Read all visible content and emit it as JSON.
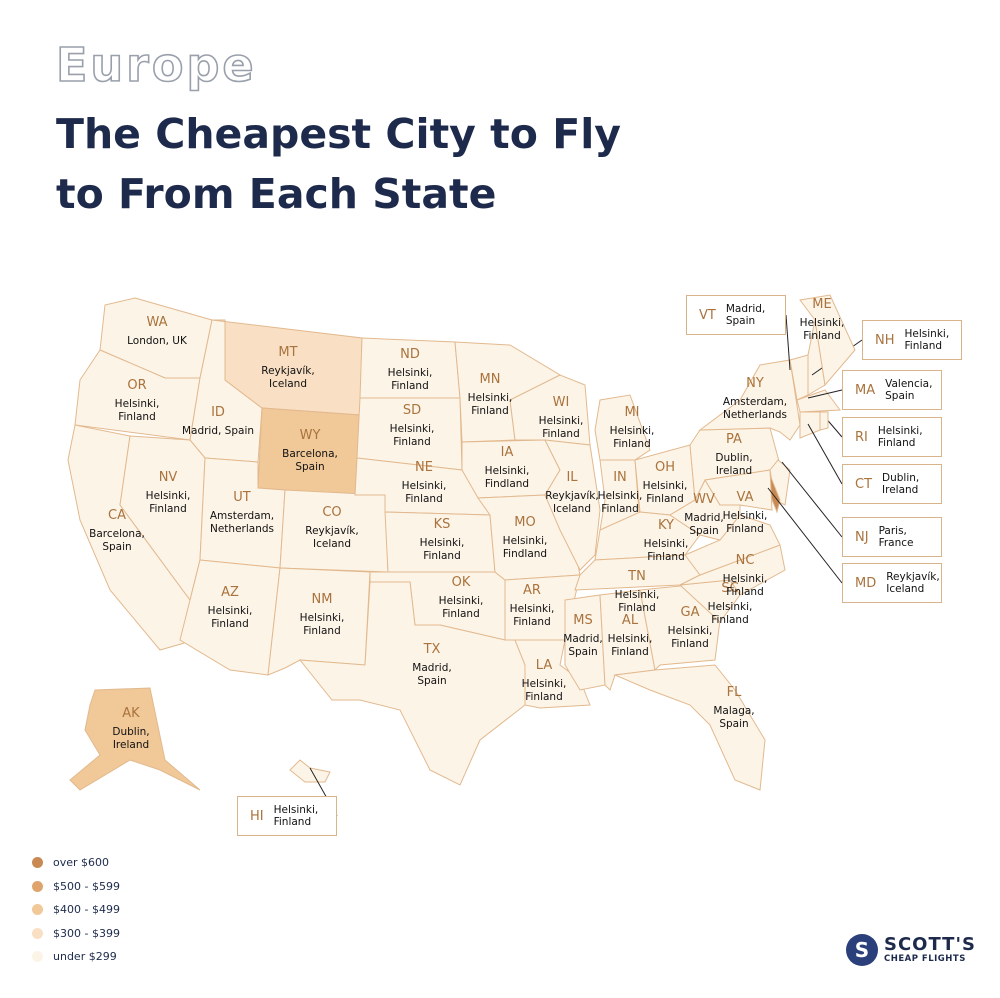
{
  "header": {
    "eyebrow": "Europe",
    "heading": [
      "The Cheapest City to Fly",
      "to From Each State"
    ]
  },
  "legend": [
    {
      "label": "over $600",
      "color": "#c88a52"
    },
    {
      "label": "$500 - $599",
      "color": "#dea46c"
    },
    {
      "label": "$400 - $499",
      "color": "#f1c898"
    },
    {
      "label": "$300 - $399",
      "color": "#f9e0c4"
    },
    {
      "label": "under $299",
      "color": "#fdf4e8"
    }
  ],
  "states": [
    {
      "code": "WA",
      "city": "London, UK",
      "tier": 4
    },
    {
      "code": "OR",
      "city": "Helsinki, Finland",
      "tier": 4
    },
    {
      "code": "CA",
      "city": "Barcelona, Spain",
      "tier": 4
    },
    {
      "code": "ID",
      "city": "Madrid, Spain",
      "tier": 4
    },
    {
      "code": "NV",
      "city": "Helsinki, Finland",
      "tier": 4
    },
    {
      "code": "MT",
      "city": "Reykjavík, Iceland",
      "tier": 3
    },
    {
      "code": "WY",
      "city": "Barcelona, Spain",
      "tier": 2
    },
    {
      "code": "UT",
      "city": "Amsterdam, Netherlands",
      "tier": 4
    },
    {
      "code": "AZ",
      "city": "Helsinki, Finland",
      "tier": 4
    },
    {
      "code": "CO",
      "city": "Reykjavík, Iceland",
      "tier": 4
    },
    {
      "code": "NM",
      "city": "Helsinki, Finland",
      "tier": 4
    },
    {
      "code": "ND",
      "city": "Helsinki, Finland",
      "tier": 4
    },
    {
      "code": "SD",
      "city": "Helsinki, Finland",
      "tier": 4
    },
    {
      "code": "NE",
      "city": "Helsinki, Finland",
      "tier": 4
    },
    {
      "code": "KS",
      "city": "Helsinki, Finland",
      "tier": 4
    },
    {
      "code": "OK",
      "city": "Helsinki, Finland",
      "tier": 4
    },
    {
      "code": "TX",
      "city": "Madrid, Spain",
      "tier": 4
    },
    {
      "code": "MN",
      "city": "Helsinki, Finland",
      "tier": 4
    },
    {
      "code": "IA",
      "city": "Helsinki, Findland",
      "tier": 4
    },
    {
      "code": "MO",
      "city": "Helsinki, Findland",
      "tier": 4
    },
    {
      "code": "AR",
      "city": "Helsinki, Finland",
      "tier": 4
    },
    {
      "code": "LA",
      "city": "Helsinki, Finland",
      "tier": 4
    },
    {
      "code": "WI",
      "city": "Helsinki, Finland",
      "tier": 4
    },
    {
      "code": "IL",
      "city": "Reykjavík, Iceland",
      "tier": 4
    },
    {
      "code": "MI",
      "city": "Helsinki, Finland",
      "tier": 4
    },
    {
      "code": "IN",
      "city": "Helsinki, Finland",
      "tier": 4
    },
    {
      "code": "OH",
      "city": "Helsinki, Finland",
      "tier": 4
    },
    {
      "code": "KY",
      "city": "Helsinki, Finland",
      "tier": 4
    },
    {
      "code": "TN",
      "city": "Helsinki, Finland",
      "tier": 4
    },
    {
      "code": "MS",
      "city": "Madrid, Spain",
      "tier": 4
    },
    {
      "code": "AL",
      "city": "Helsinki, Finland",
      "tier": 4
    },
    {
      "code": "GA",
      "city": "Helsinki, Finland",
      "tier": 4
    },
    {
      "code": "FL",
      "city": "Malaga, Spain",
      "tier": 4
    },
    {
      "code": "SC",
      "city": "Helsinki, Finland",
      "tier": 4
    },
    {
      "code": "NC",
      "city": "Helsinki, Finland",
      "tier": 4
    },
    {
      "code": "VA",
      "city": "Helsinki, Finland",
      "tier": 4
    },
    {
      "code": "WV",
      "city": "Madrid, Spain",
      "tier": 4
    },
    {
      "code": "PA",
      "city": "Dublin, Ireland",
      "tier": 4
    },
    {
      "code": "NY",
      "city": "Amsterdam, Netherlands",
      "tier": 4
    },
    {
      "code": "VT",
      "city": "Madrid, Spain",
      "tier": 4
    },
    {
      "code": "NH",
      "city": "Helsinki, Finland",
      "tier": 4
    },
    {
      "code": "ME",
      "city": "Helsinki, Finland",
      "tier": 4
    },
    {
      "code": "MA",
      "city": "Valencia, Spain",
      "tier": 4
    },
    {
      "code": "RI",
      "city": "Helsinki, Finland",
      "tier": 4
    },
    {
      "code": "CT",
      "city": "Dublin, Ireland",
      "tier": 4
    },
    {
      "code": "NJ",
      "city": "Paris, France",
      "tier": 4
    },
    {
      "tier": 0
    },
    {
      "code": "MD",
      "city": "Reykjavík, Iceland",
      "tier": 4
    },
    {
      "code": "AK",
      "city": "Dublin, Ireland",
      "tier": 2
    },
    {
      "code": "HI",
      "city": "Helsinki, Finland",
      "tier": 4
    }
  ]
}
